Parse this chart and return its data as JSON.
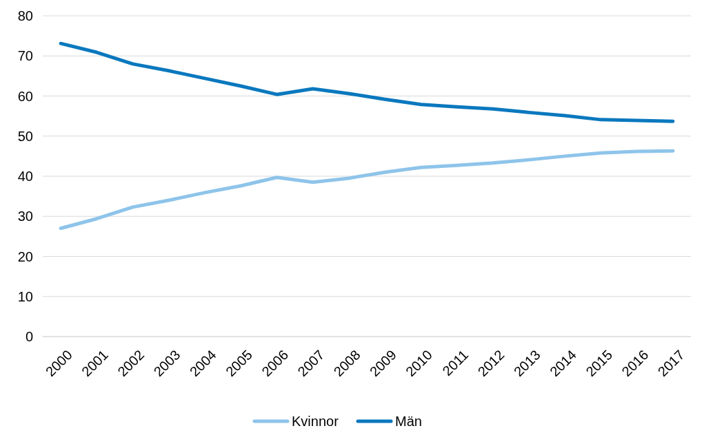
{
  "chart_data": {
    "type": "line",
    "categories": [
      "2000",
      "2001",
      "2002",
      "2003",
      "2004",
      "2005",
      "2006",
      "2007",
      "2008",
      "2009",
      "2010",
      "2011",
      "2012",
      "2013",
      "2014",
      "2015",
      "2016",
      "2017"
    ],
    "series": [
      {
        "name": "Kvinnor",
        "color": "#8ec4ea",
        "values": [
          27.0,
          29.4,
          32.3,
          34.0,
          35.9,
          37.6,
          39.7,
          38.5,
          39.5,
          41.0,
          42.2,
          42.7,
          43.3,
          44.1,
          45.0,
          45.8,
          46.2,
          46.3
        ]
      },
      {
        "name": "Män",
        "color": "#0a78be",
        "values": [
          73.1,
          70.9,
          68.0,
          66.3,
          64.4,
          62.5,
          60.4,
          61.8,
          60.6,
          59.2,
          57.9,
          57.3,
          56.8,
          55.9,
          55.1,
          54.1,
          53.9,
          53.7
        ]
      }
    ],
    "ylim": [
      0,
      80
    ],
    "yticks": [
      0,
      10,
      20,
      30,
      40,
      50,
      60,
      70,
      80
    ],
    "grid": "y",
    "legend": "bottom",
    "marker": "none",
    "line_style": "solid"
  }
}
